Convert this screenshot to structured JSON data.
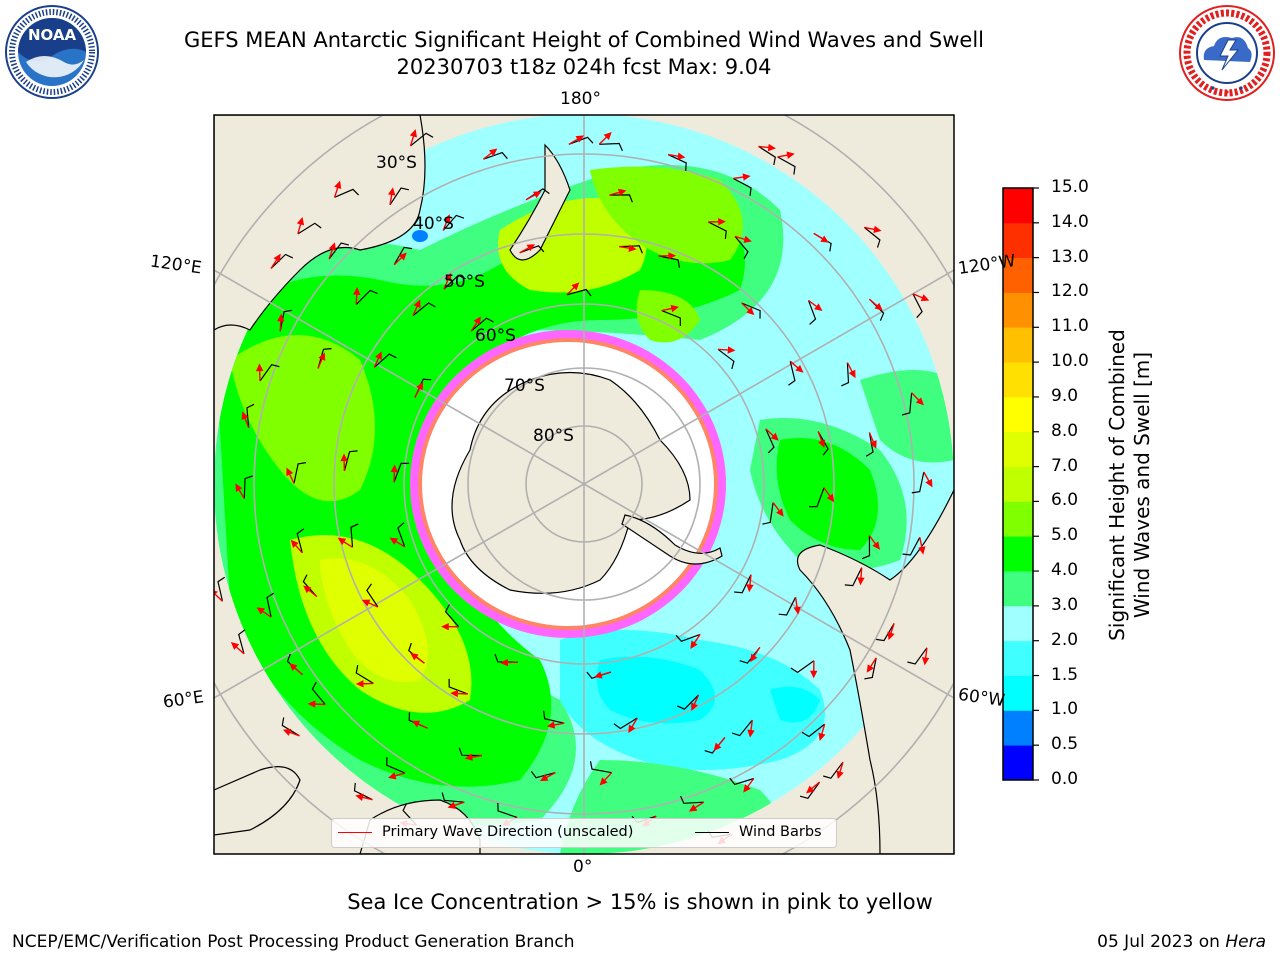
{
  "title": {
    "line1": "GEFS MEAN Antarctic Significant Height of Combined Wind Waves and Swell",
    "line2": "20230703 t18z 024h fcst   Max: 9.04"
  },
  "logos": {
    "left": {
      "name": "NOAA",
      "text": "NOAA",
      "ring_text": "NATIONAL OCEANIC AND ATMOSPHERIC ADMINISTRATION · U.S. DEPARTMENT OF COMMERCE"
    },
    "right": {
      "name": "National Weather Service",
      "ring_text": "NATIONAL WEATHER SERVICE"
    }
  },
  "map": {
    "projection": "south-polar-stereographic",
    "longitude_labels": [
      "180°",
      "120°E",
      "120°W",
      "60°E",
      "60°W",
      "0°"
    ],
    "latitude_labels": [
      "30°S",
      "40°S",
      "50°S",
      "60°S",
      "70°S",
      "80°S"
    ],
    "field": "Significant Height of Combined Wind Waves and Swell",
    "max_value": 9.04,
    "colors": {
      "land": "#efebdc",
      "sea_ice": "#ffffff",
      "grid": "#b0b0b0",
      "wave_arrow": "#ff0000",
      "wind_barb": "#000000"
    }
  },
  "legend": {
    "items": [
      {
        "label": "Primary Wave Direction (unscaled)",
        "color": "#ff0000"
      },
      {
        "label": "Wind Barbs",
        "color": "#000000"
      }
    ]
  },
  "colorbar": {
    "label_line1": "Significant Height of Combined",
    "label_line2": "Wind Waves and Swell [m]",
    "ticks": [
      "15.0",
      "14.0",
      "13.0",
      "12.0",
      "11.0",
      "10.0",
      "9.0",
      "8.0",
      "7.0",
      "6.0",
      "5.0",
      "4.0",
      "3.0",
      "2.0",
      "1.5",
      "1.0",
      "0.5",
      "0.0"
    ],
    "bins": [
      {
        "from": 0.0,
        "to": 0.5,
        "color": "#0000ff"
      },
      {
        "from": 0.5,
        "to": 1.0,
        "color": "#0080ff"
      },
      {
        "from": 1.0,
        "to": 1.5,
        "color": "#00ffff"
      },
      {
        "from": 1.5,
        "to": 2.0,
        "color": "#40ffff"
      },
      {
        "from": 2.0,
        "to": 3.0,
        "color": "#a0ffff"
      },
      {
        "from": 3.0,
        "to": 4.0,
        "color": "#40ff80"
      },
      {
        "from": 4.0,
        "to": 5.0,
        "color": "#00ff00"
      },
      {
        "from": 5.0,
        "to": 6.0,
        "color": "#80ff00"
      },
      {
        "from": 6.0,
        "to": 7.0,
        "color": "#c0ff00"
      },
      {
        "from": 7.0,
        "to": 8.0,
        "color": "#e0ff00"
      },
      {
        "from": 8.0,
        "to": 9.0,
        "color": "#ffff00"
      },
      {
        "from": 9.0,
        "to": 10.0,
        "color": "#ffe000"
      },
      {
        "from": 10.0,
        "to": 11.0,
        "color": "#ffc000"
      },
      {
        "from": 11.0,
        "to": 12.0,
        "color": "#ff9000"
      },
      {
        "from": 12.0,
        "to": 13.0,
        "color": "#ff6000"
      },
      {
        "from": 13.0,
        "to": 14.0,
        "color": "#ff3000"
      },
      {
        "from": 14.0,
        "to": 15.0,
        "color": "#ff0000"
      }
    ]
  },
  "caption": "Sea Ice Concentration > 15% is shown in pink to yellow",
  "footer": {
    "left": "NCEP/EMC/Verification Post Processing Product Generation Branch",
    "right_prefix": "05 Jul 2023 on ",
    "right_host": "Hera"
  }
}
